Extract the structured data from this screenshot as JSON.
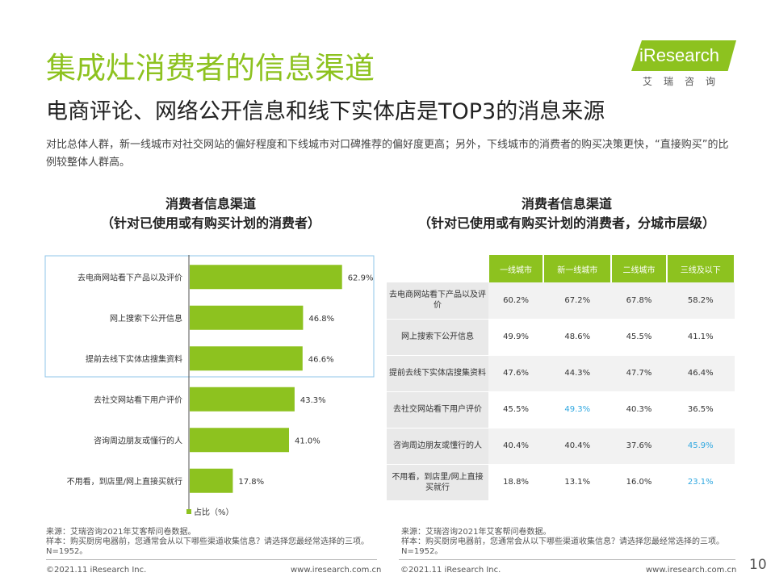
{
  "header": {
    "title": "集成灶消费者的信息渠道",
    "subtitle": "电商评论、网络公开信息和线下实体店是TOP3的消息来源",
    "description": "对比总体人群，新一线城市对社交网站的偏好程度和下线城市对口碑推荐的偏好度更高；另外，下线城市的消费者的购买决策更快，“直接购买”的比例较整体人群高。"
  },
  "logo": {
    "text": "iResearch",
    "cn": "艾瑞咨询"
  },
  "left_chart_title": {
    "line1": "消费者信息渠道",
    "line2": "（针对已使用或有购买计划的消费者）"
  },
  "right_chart_title": {
    "line1": "消费者信息渠道",
    "line2": "（针对已使用或有购买计划的消费者，分城市层级）"
  },
  "colors": {
    "accent": "#8dc21f",
    "highlight": "#2ea7e0",
    "frame": "#8fc6e8"
  },
  "chart_data": {
    "type": "bar",
    "orientation": "horizontal",
    "categories": [
      "去电商网站看下产品以及评价",
      "网上搜索下公开信息",
      "提前去线下实体店搜集资料",
      "去社交网站看下用户评价",
      "咨询周边朋友或懂行的人",
      "不用看，到店里/网上直接买就行"
    ],
    "values": [
      62.9,
      46.8,
      46.6,
      43.3,
      41.0,
      17.8
    ],
    "value_labels": [
      "62.9%",
      "46.8%",
      "46.6%",
      "43.3%",
      "41.0%",
      "17.8%"
    ],
    "legend": "占比（%）",
    "xlim": [
      0,
      100
    ]
  },
  "table": {
    "columns": [
      "一线城市",
      "新一线城市",
      "二线城市",
      "三线及以下"
    ],
    "rows": [
      {
        "label": "去电商网站看下产品以及评价",
        "values": [
          "60.2%",
          "67.2%",
          "67.8%",
          "58.2%"
        ]
      },
      {
        "label": "网上搜索下公开信息",
        "values": [
          "49.9%",
          "48.6%",
          "45.5%",
          "41.1%"
        ]
      },
      {
        "label": "提前去线下实体店搜集资料",
        "values": [
          "47.6%",
          "44.3%",
          "47.7%",
          "46.4%"
        ]
      },
      {
        "label": "去社交网站看下用户评价",
        "values": [
          "45.5%",
          "49.3%",
          "40.3%",
          "36.5%"
        ]
      },
      {
        "label": "咨询周边朋友或懂行的人",
        "values": [
          "40.4%",
          "40.4%",
          "37.6%",
          "45.9%"
        ]
      },
      {
        "label": "不用看，到店里/网上直接买就行",
        "values": [
          "18.8%",
          "13.1%",
          "16.0%",
          "23.1%"
        ]
      }
    ]
  },
  "source": {
    "line1": "来源：艾瑞咨询2021年艾客帮问卷数据。",
    "line2": "样本：购买厨房电器前，您通常会从以下哪些渠道收集信息？请选择您最经常选择的三项。N=1952。"
  },
  "footer": {
    "copyright": "©2021.11 iResearch Inc.",
    "url": "www.iresearch.com.cn",
    "page": "10"
  }
}
